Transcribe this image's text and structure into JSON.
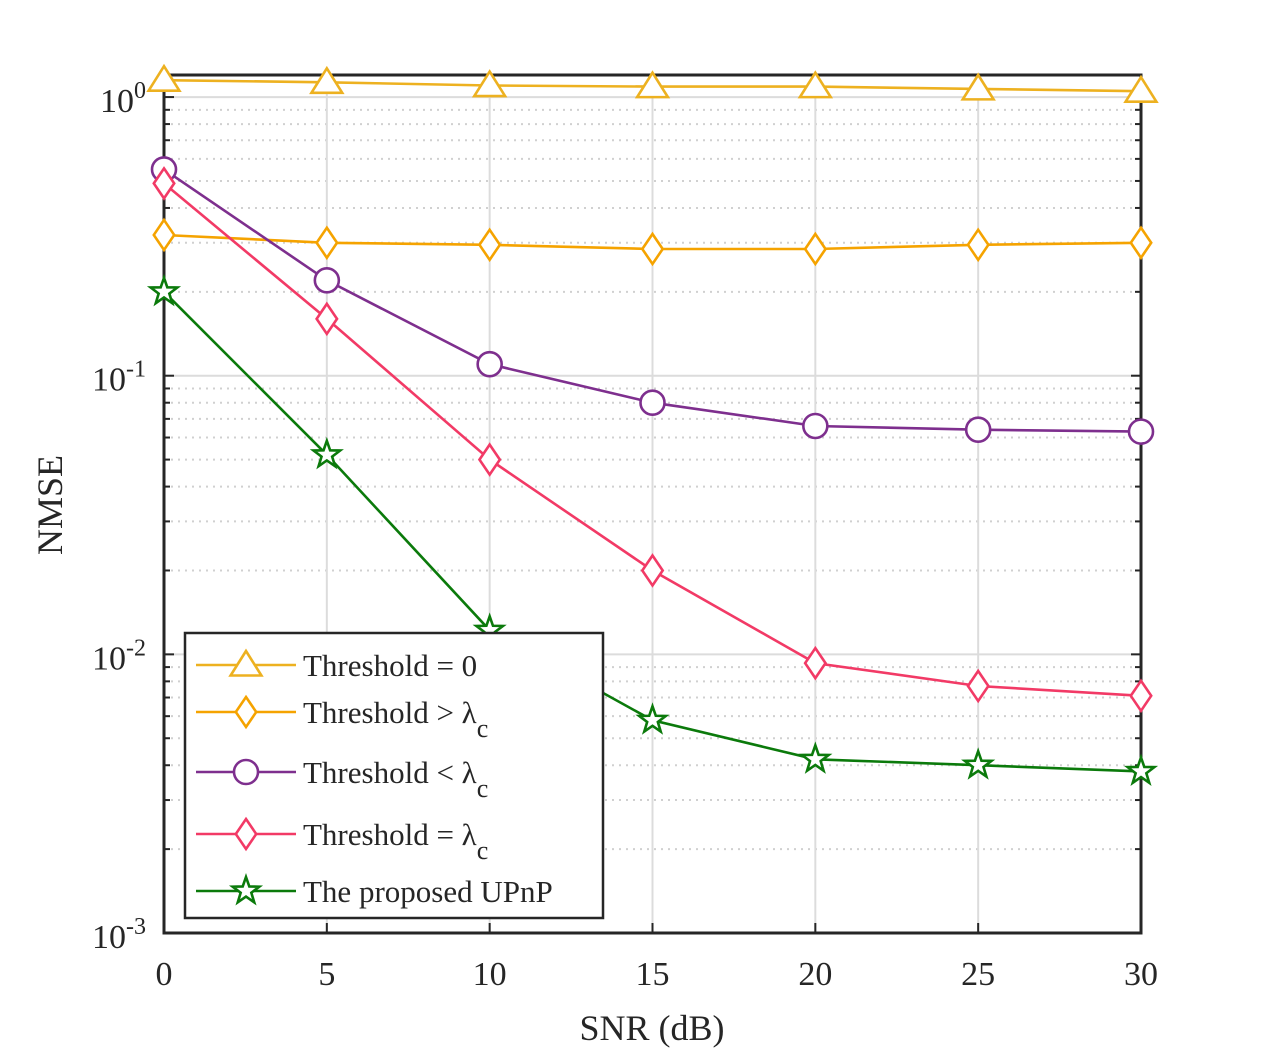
{
  "chart_data": {
    "type": "line",
    "xlabel": "SNR (dB)",
    "ylabel": "NMSE",
    "yscale": "log",
    "xlim": [
      0,
      30
    ],
    "ylim": [
      0.001,
      1.2
    ],
    "grid": true,
    "x": [
      0,
      5,
      10,
      15,
      20,
      25,
      30
    ],
    "x_ticks": [
      "0",
      "5",
      "10",
      "15",
      "20",
      "25",
      "30"
    ],
    "y_ticks": [
      {
        "value": 1,
        "base": "10",
        "exp": "0"
      },
      {
        "value": 0.1,
        "base": "10",
        "exp": "-1"
      },
      {
        "value": 0.01,
        "base": "10",
        "exp": "-2"
      },
      {
        "value": 0.001,
        "base": "10",
        "exp": "-3"
      }
    ],
    "legend_position": "bottom-left",
    "series": [
      {
        "name": "Threshold = 0",
        "label_main": "Threshold = 0",
        "label_sub": "",
        "color": "#EDB120",
        "marker": "triangle",
        "values": [
          1.15,
          1.13,
          1.1,
          1.09,
          1.09,
          1.07,
          1.05
        ]
      },
      {
        "name": "Threshold > λc",
        "label_main": "Threshold > λ",
        "label_sub": "c",
        "color": "#F5A300",
        "marker": "diamond",
        "values": [
          0.32,
          0.3,
          0.295,
          0.285,
          0.285,
          0.295,
          0.3
        ]
      },
      {
        "name": "Threshold < λc",
        "label_main": "Threshold < λ",
        "label_sub": "c",
        "color": "#7E2F8E",
        "marker": "circle",
        "values": [
          0.55,
          0.22,
          0.11,
          0.08,
          0.066,
          0.064,
          0.063
        ]
      },
      {
        "name": "Threshold = λc",
        "label_main": "Threshold = λ",
        "label_sub": "c",
        "color": "#F23A66",
        "marker": "diamond",
        "values": [
          0.49,
          0.16,
          0.05,
          0.02,
          0.0093,
          0.0077,
          0.0071
        ]
      },
      {
        "name": "The proposed UPnP",
        "label_main": "The proposed UPnP",
        "label_sub": "",
        "color": "#0B7A0B",
        "marker": "star",
        "values": [
          0.2,
          0.052,
          0.0122,
          0.0058,
          0.0042,
          0.004,
          0.0038
        ]
      }
    ]
  }
}
